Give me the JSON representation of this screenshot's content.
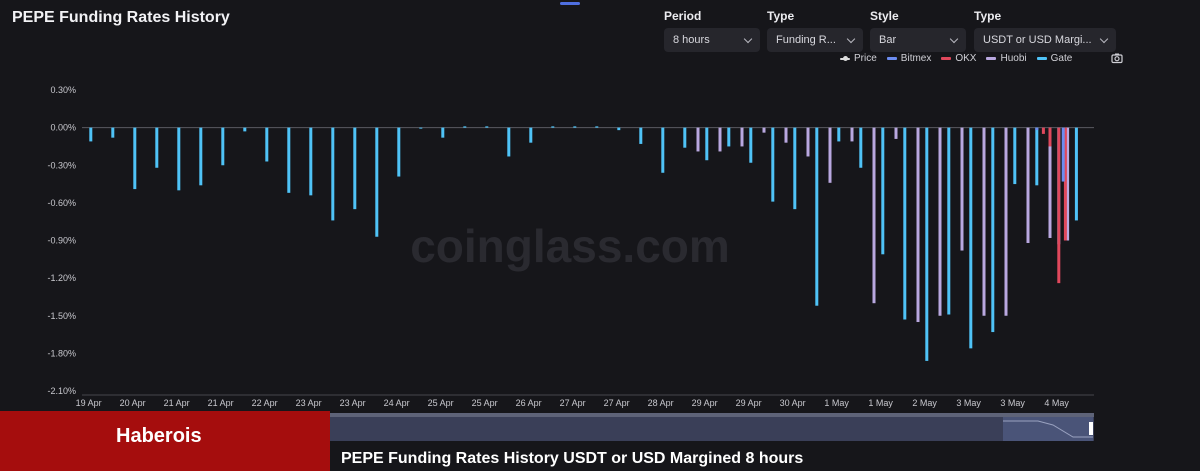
{
  "title": "PEPE Funding Rates History",
  "controls": {
    "period": {
      "label": "Period",
      "value": "8 hours"
    },
    "type1": {
      "label": "Type",
      "value": "Funding R..."
    },
    "style": {
      "label": "Style",
      "value": "Bar"
    },
    "type2": {
      "label": "Type",
      "value": "USDT or USD Margi..."
    }
  },
  "legend": [
    {
      "name": "Price",
      "color": "#dcdcdc"
    },
    {
      "name": "Bitmex",
      "color": "#6c8cf0"
    },
    {
      "name": "OKX",
      "color": "#e0485c"
    },
    {
      "name": "Huobi",
      "color": "#b9a8e0"
    },
    {
      "name": "Gate",
      "color": "#4fc3f7"
    }
  ],
  "watermark": "coinglass.com",
  "brand": "Haberois",
  "caption": "PEPE Funding Rates History USDT or USD Margined 8 hours",
  "chart_data": {
    "type": "bar",
    "title": "PEPE Funding Rates History",
    "ylim": [
      -2.1,
      0.3
    ],
    "y_ticks": [
      "0.30%",
      "0.00%",
      "-0.30%",
      "-0.60%",
      "-0.90%",
      "-1.20%",
      "-1.50%",
      "-1.80%",
      "-2.10%"
    ],
    "x_ticks": [
      "19 Apr",
      "20 Apr",
      "21 Apr",
      "21 Apr",
      "22 Apr",
      "23 Apr",
      "23 Apr",
      "24 Apr",
      "25 Apr",
      "25 Apr",
      "26 Apr",
      "27 Apr",
      "27 Apr",
      "28 Apr",
      "29 Apr",
      "29 Apr",
      "30 Apr",
      "1 May",
      "1 May",
      "2 May",
      "3 May",
      "3 May",
      "4 May"
    ],
    "x_range": [
      0,
      23.0
    ],
    "grid": false,
    "legend_position": "top-right",
    "series": [
      {
        "name": "Gate",
        "x": [
          0.2,
          0.7,
          1.2,
          1.7,
          2.2,
          2.7,
          3.2,
          3.7,
          4.2,
          4.7,
          5.2,
          5.7,
          6.2,
          6.7,
          7.2,
          7.7,
          8.2,
          8.7,
          9.2,
          9.7,
          10.2,
          10.7,
          11.2,
          11.7,
          12.2,
          12.7,
          13.2,
          13.7,
          14.2,
          14.7,
          15.2,
          15.7,
          16.2,
          16.7,
          17.2,
          17.7,
          18.2,
          18.7,
          19.2,
          19.7,
          20.2,
          20.7,
          21.2,
          21.7,
          22.2,
          22.6
        ],
        "values": [
          -0.11,
          -0.08,
          -0.49,
          -0.32,
          -0.5,
          -0.46,
          -0.3,
          -0.03,
          -0.27,
          -0.52,
          -0.54,
          -0.74,
          -0.65,
          -0.87,
          -0.39,
          0.0,
          -0.08,
          0.01,
          0.01,
          -0.23,
          -0.12,
          0.01,
          0.01,
          0.01,
          -0.02,
          -0.13,
          -0.36,
          -0.16,
          -0.26,
          -0.15,
          -0.28,
          -0.59,
          -0.65,
          -1.42,
          -0.11,
          -0.32,
          -1.01,
          -1.53,
          -1.86,
          -1.49,
          -1.76,
          -1.63,
          -0.45,
          -0.46,
          -0.93,
          -0.74
        ]
      },
      {
        "name": "Huobi",
        "x": [
          14.0,
          14.5,
          15.0,
          15.5,
          16.0,
          16.5,
          17.0,
          17.5,
          18.0,
          18.5,
          19.0,
          19.5,
          20.0,
          20.5,
          21.0,
          21.5,
          22.0,
          22.4
        ],
        "values": [
          -0.19,
          -0.19,
          -0.15,
          -0.04,
          -0.12,
          -0.23,
          -0.44,
          -0.11,
          -1.4,
          -0.09,
          -1.55,
          -1.5,
          -0.98,
          -1.5,
          -1.5,
          -0.92,
          -0.88,
          -0.9
        ]
      },
      {
        "name": "OKX",
        "x": [
          21.85,
          22.0,
          22.2,
          22.35
        ],
        "values": [
          -0.05,
          -0.15,
          -1.24,
          -0.9
        ]
      },
      {
        "name": "Bitmex",
        "x": [
          21.7,
          22.3
        ],
        "values": [
          -0.02,
          -0.43
        ]
      }
    ]
  }
}
